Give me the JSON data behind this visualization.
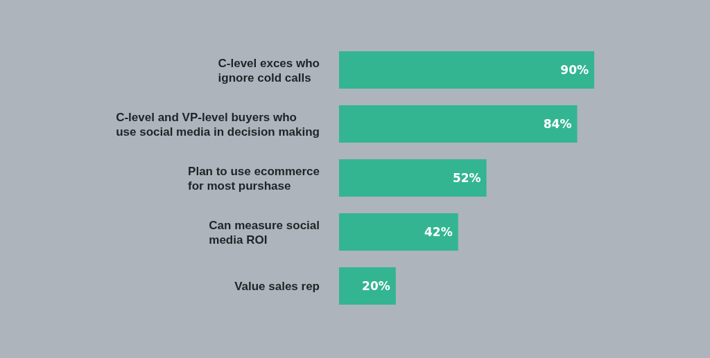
{
  "chart_data": {
    "type": "bar",
    "orientation": "horizontal",
    "categories": [
      "C-level exces who\nignore cold calls",
      "C-level and VP-level buyers who\nuse social media in decision making",
      "Plan to use ecommerce\nfor most purshase",
      "Can measure social\nmedia ROI",
      "Value sales rep"
    ],
    "values": [
      90,
      84,
      52,
      42,
      20
    ],
    "value_labels": [
      "90%",
      "84%",
      "52%",
      "42%",
      "20%"
    ],
    "color": "#33b592",
    "tick_labels": "y"
  }
}
